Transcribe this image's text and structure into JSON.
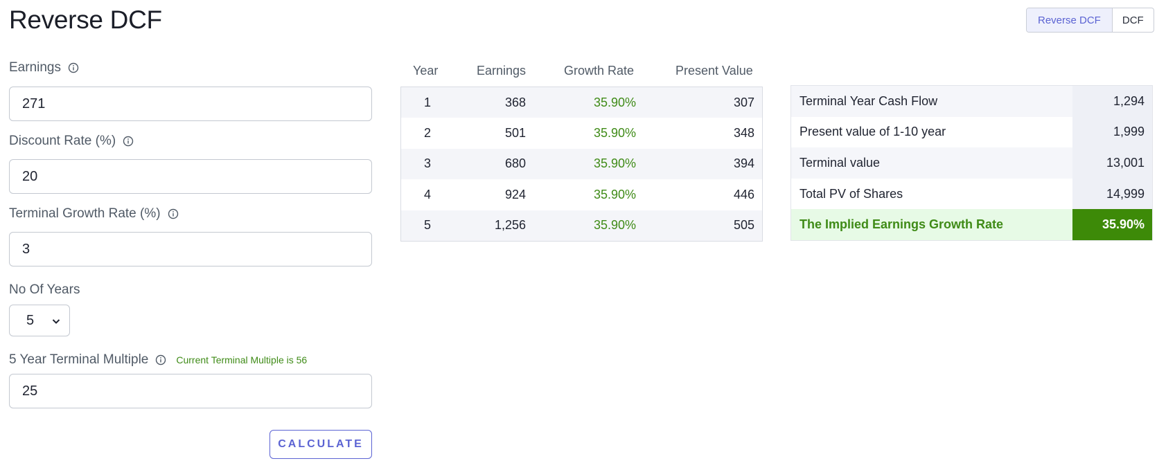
{
  "page_title": "Reverse DCF",
  "mode_toggle": {
    "reverse_dcf": "Reverse DCF",
    "dcf": "DCF"
  },
  "form": {
    "earnings": {
      "label": "Earnings",
      "value": "271"
    },
    "discount_rate": {
      "label": "Discount Rate (%)",
      "value": "20"
    },
    "terminal_growth_rate": {
      "label": "Terminal Growth Rate (%)",
      "value": "3"
    },
    "no_of_years": {
      "label": "No Of Years",
      "selected": "5"
    },
    "terminal_multiple": {
      "label": "5 Year Terminal Multiple",
      "note": "Current Terminal Multiple is 56",
      "value": "25"
    },
    "calculate_label": "CALCULATE"
  },
  "projection": {
    "headers": [
      "Year",
      "Earnings",
      "Growth Rate",
      "Present Value"
    ],
    "rows": [
      {
        "year": "1",
        "earnings": "368",
        "growth": "35.90%",
        "pv": "307"
      },
      {
        "year": "2",
        "earnings": "501",
        "growth": "35.90%",
        "pv": "348"
      },
      {
        "year": "3",
        "earnings": "680",
        "growth": "35.90%",
        "pv": "394"
      },
      {
        "year": "4",
        "earnings": "924",
        "growth": "35.90%",
        "pv": "446"
      },
      {
        "year": "5",
        "earnings": "1,256",
        "growth": "35.90%",
        "pv": "505"
      }
    ]
  },
  "summary": {
    "rows": [
      {
        "label": "Terminal Year Cash Flow",
        "value": "1,294"
      },
      {
        "label": "Present value of 1-10 year",
        "value": "1,999"
      },
      {
        "label": "Terminal value",
        "value": "13,001"
      },
      {
        "label": "Total PV of Shares",
        "value": "14,999"
      },
      {
        "label": "The Implied Earnings Growth Rate",
        "value": "35.90%"
      }
    ]
  },
  "colors": {
    "accent": "#5b63d3",
    "positive": "#3f8b17",
    "highlight_bg": "#3d8a08"
  }
}
